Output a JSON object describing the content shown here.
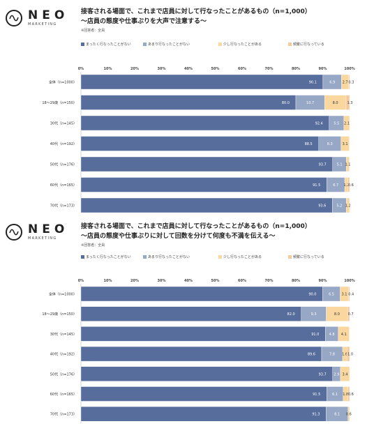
{
  "logo": {
    "brand": "NEO",
    "sub": "MARKETING"
  },
  "colors": [
    "#576d9c",
    "#97a7c6",
    "#f9d79e",
    "#f6c89a"
  ],
  "panels": [
    {
      "title_line1": "接客される場面で、これまで店員に対して行なったことがあるもの（n=1,000）",
      "title_line2": "～店員の態度や仕事ぶりを大声で注意する～",
      "note": "※回答者：全員"
    },
    {
      "title_line1": "接客される場面で、これまで店員に対して行なったことがあるもの（n=1,000）",
      "title_line2": "～店員の態度や仕事ぶりに対して回数を分けて何度も不満を伝える～",
      "note": "※回答者：全員"
    }
  ],
  "chart_data": [
    {
      "type": "bar",
      "orientation": "horizontal",
      "stacked": true,
      "categories": [
        "全体（n=1000）",
        "18～29歳（n=150）",
        "30代（n=145）",
        "40代（n=192）",
        "50代（n=176）",
        "60代（n=165）",
        "70代（n=173）"
      ],
      "series": [
        {
          "name": "まったく行なったことがない",
          "values": [
            90.1,
            80.0,
            92.4,
            88.5,
            93.7,
            91.5,
            93.6
          ]
        },
        {
          "name": "あまり行なったことがない",
          "values": [
            6.9,
            10.7,
            5.5,
            8.3,
            5.1,
            6.7,
            5.2
          ]
        },
        {
          "name": "少し行なったことがある",
          "values": [
            2.7,
            8.0,
            2.1,
            3.1,
            1.1,
            1.2,
            1.2
          ]
        },
        {
          "name": "頻繁に行なっている",
          "values": [
            0.3,
            1.3,
            0,
            0,
            0,
            0.6,
            0
          ]
        }
      ],
      "labels": [
        [
          "90.1",
          "6.9",
          "2.7",
          "0.3"
        ],
        [
          "80.0",
          "10.7",
          "8.0",
          "1.3"
        ],
        [
          "92.4",
          "5.5",
          "2.1",
          ""
        ],
        [
          "88.5",
          "8.3",
          "3.1",
          ""
        ],
        [
          "93.7",
          "5.1",
          "1.1",
          ""
        ],
        [
          "91.5",
          "6.7",
          "1.2",
          "0.6"
        ],
        [
          "93.6",
          "5.2",
          "1.2",
          ""
        ]
      ],
      "x_ticks": [
        "0%",
        "10%",
        "20%",
        "30%",
        "40%",
        "50%",
        "60%",
        "70%",
        "80%",
        "90%",
        "100%"
      ],
      "xlim": [
        0,
        100
      ],
      "legend": "top",
      "grid": false
    },
    {
      "type": "bar",
      "orientation": "horizontal",
      "stacked": true,
      "categories": [
        "全体（n=1000）",
        "18～29歳（n=150）",
        "30代（n=145）",
        "40代（n=192）",
        "50代（n=176）",
        "60代（n=165）",
        "70代（n=173）"
      ],
      "series": [
        {
          "name": "まったく行なったことがない",
          "values": [
            90.0,
            82.0,
            91.0,
            89.6,
            93.7,
            91.5,
            91.3
          ]
        },
        {
          "name": "あまり行なったことがない",
          "values": [
            6.5,
            9.3,
            4.8,
            7.8,
            2.9,
            6.1,
            8.1
          ]
        },
        {
          "name": "少し行なったことがある",
          "values": [
            3.1,
            8.0,
            4.1,
            1.6,
            3.4,
            1.8,
            0.6
          ]
        },
        {
          "name": "頻繁に行なっている",
          "values": [
            0.4,
            0.7,
            0,
            1.0,
            0,
            0.6,
            0
          ]
        }
      ],
      "labels": [
        [
          "90.0",
          "6.5",
          "3.1",
          "0.4"
        ],
        [
          "82.0",
          "9.3",
          "8.0",
          "0.7"
        ],
        [
          "91.0",
          "4.8",
          "4.1",
          ""
        ],
        [
          "89.6",
          "7.8",
          "1.6",
          "1.0"
        ],
        [
          "93.7",
          "2.9",
          "3.4",
          ""
        ],
        [
          "91.5",
          "6.1",
          "1.8",
          "0.6"
        ],
        [
          "91.3",
          "8.1",
          "0.6",
          ""
        ]
      ],
      "x_ticks": [
        "0%",
        "10%",
        "20%",
        "30%",
        "40%",
        "50%",
        "60%",
        "70%",
        "80%",
        "90%",
        "100%"
      ],
      "xlim": [
        0,
        100
      ],
      "legend": "top",
      "grid": false
    }
  ]
}
